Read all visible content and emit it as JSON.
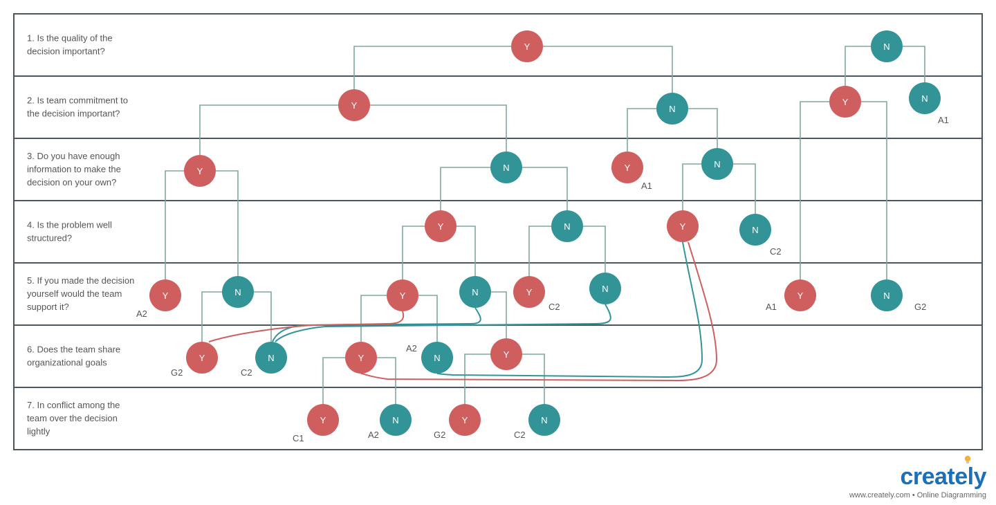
{
  "colors": {
    "yes": "#cf5f5f",
    "no": "#339497",
    "connector": "#7ea898",
    "border": "#4a5560",
    "text": "#555555",
    "brand": "#1d6fb8",
    "bulb": "#f2b233"
  },
  "questions": [
    {
      "lines": [
        "1. Is the quality of the",
        "decision important?"
      ]
    },
    {
      "lines": [
        "2. Is team commitment to",
        "the decision important?"
      ]
    },
    {
      "lines": [
        "3. Do you have enough",
        "information to make the",
        "decision on your own?"
      ]
    },
    {
      "lines": [
        "4. Is the problem well",
        "structured?"
      ]
    },
    {
      "lines": [
        "5. If you made the decision",
        "yourself would the team",
        "support it?"
      ]
    },
    {
      "lines": [
        "6. Does the team share",
        "organizational goals"
      ]
    },
    {
      "lines": [
        "7. In conflict among the",
        "team over the decision",
        "lightly"
      ]
    }
  ],
  "node_labels": {
    "yes": "Y",
    "no": "N"
  },
  "outcomes": [
    "A1",
    "A1",
    "C2",
    "A2",
    "C2",
    "A1",
    "G2",
    "G2",
    "C2",
    "A2",
    "C1",
    "A2",
    "G2",
    "C2"
  ],
  "brand": {
    "logo": "creately",
    "tagline": "www.creately.com • Online Diagramming"
  }
}
